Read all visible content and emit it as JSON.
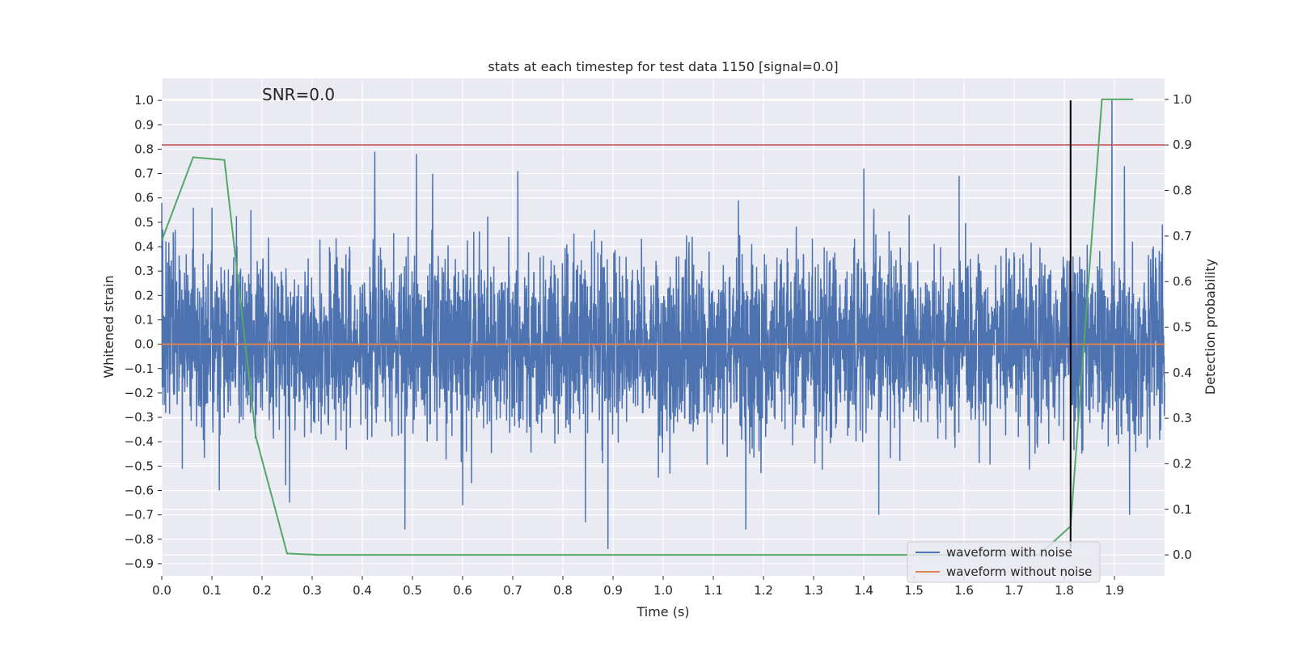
{
  "chart_data": {
    "type": "line",
    "title": "stats at each timestep for test data 1150 [signal=0.0]",
    "annotation": "SNR=0.0",
    "xlabel": "Time (s)",
    "ylabel": "Whitened strain",
    "y2label": "Detection probability",
    "xlim": [
      0.0,
      2.0
    ],
    "ylim": [
      -0.95,
      1.09
    ],
    "y2lim": [
      -0.046,
      1.046
    ],
    "xticks": [
      0.0,
      0.1,
      0.2,
      0.3,
      0.4,
      0.5,
      0.6,
      0.7,
      0.8,
      0.9,
      1.0,
      1.1,
      1.2,
      1.3,
      1.4,
      1.5,
      1.6,
      1.7,
      1.8,
      1.9
    ],
    "xtick_labels": [
      "0.0",
      "0.1",
      "0.2",
      "0.3",
      "0.4",
      "0.5",
      "0.6",
      "0.7",
      "0.8",
      "0.9",
      "1.0",
      "1.1",
      "1.2",
      "1.3",
      "1.4",
      "1.5",
      "1.6",
      "1.7",
      "1.8",
      "1.9"
    ],
    "yticks": [
      -0.9,
      -0.8,
      -0.7,
      -0.6,
      -0.5,
      -0.4,
      -0.3,
      -0.2,
      -0.1,
      0.0,
      0.1,
      0.2,
      0.3,
      0.4,
      0.5,
      0.6,
      0.7,
      0.8,
      0.9,
      1.0
    ],
    "ytick_labels": [
      "−0.9",
      "−0.8",
      "−0.7",
      "−0.6",
      "−0.5",
      "−0.4",
      "−0.3",
      "−0.2",
      "−0.1",
      "0.0",
      "0.1",
      "0.2",
      "0.3",
      "0.4",
      "0.5",
      "0.6",
      "0.7",
      "0.8",
      "0.9",
      "1.0"
    ],
    "y2ticks": [
      0.0,
      0.1,
      0.2,
      0.3,
      0.4,
      0.5,
      0.6,
      0.7,
      0.8,
      0.9,
      1.0
    ],
    "y2tick_labels": [
      "0.0",
      "0.1",
      "0.2",
      "0.3",
      "0.4",
      "0.5",
      "0.6",
      "0.7",
      "0.8",
      "0.9",
      "1.0"
    ],
    "grid": true,
    "legend_position": "lower-right",
    "legend": [
      {
        "label": "waveform with noise",
        "color": "#4c72b0"
      },
      {
        "label": "waveform without noise",
        "color": "#dd8452"
      }
    ],
    "series": [
      {
        "name": "waveform with noise",
        "color": "#4c72b0",
        "axis": "left",
        "style": "noise",
        "sample_count": 4096,
        "amplitude_range": [
          -0.84,
          1.0
        ],
        "peaks": [
          [
            0.0,
            0.58
          ],
          [
            0.063,
            0.56
          ],
          [
            0.1,
            0.56
          ],
          [
            0.178,
            0.55
          ],
          [
            0.425,
            0.79
          ],
          [
            0.508,
            0.78
          ],
          [
            0.54,
            0.7
          ],
          [
            0.71,
            0.71
          ],
          [
            1.15,
            0.59
          ],
          [
            1.4,
            0.72
          ],
          [
            1.59,
            0.69
          ],
          [
            1.895,
            1.0
          ],
          [
            1.92,
            0.73
          ]
        ],
        "troughs": [
          [
            0.115,
            -0.6
          ],
          [
            0.255,
            -0.65
          ],
          [
            0.485,
            -0.76
          ],
          [
            0.6,
            -0.66
          ],
          [
            0.845,
            -0.73
          ],
          [
            0.89,
            -0.84
          ],
          [
            1.165,
            -0.76
          ],
          [
            1.43,
            -0.7
          ],
          [
            1.93,
            -0.7
          ]
        ]
      },
      {
        "name": "waveform without noise",
        "color": "#dd8452",
        "axis": "left",
        "x": [
          0.0,
          2.0
        ],
        "y": [
          0.0,
          0.0
        ]
      },
      {
        "color": "#55a868",
        "axis": "right",
        "x": [
          0.0,
          0.0625,
          0.125,
          0.1875,
          0.25,
          0.3125,
          1.75,
          1.8125,
          1.875,
          1.9375
        ],
        "y": [
          0.69,
          0.873,
          0.867,
          0.26,
          0.003,
          0.0,
          0.0,
          0.063,
          1.0,
          1.0
        ]
      }
    ],
    "threshold": {
      "value": 0.9,
      "axis": "right",
      "color": "#c44e52"
    },
    "marker": {
      "x": 1.8125,
      "y_from": -0.84,
      "y_to": 1.0,
      "color": "#000000"
    }
  }
}
